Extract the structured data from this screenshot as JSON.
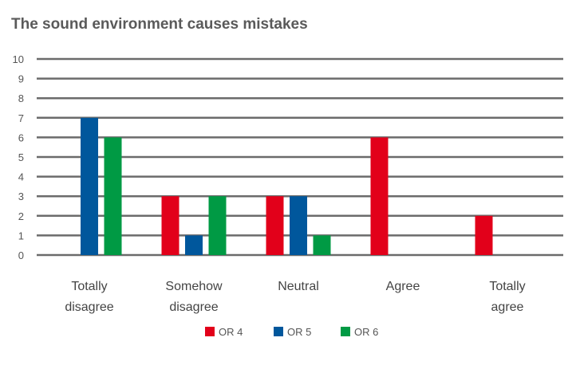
{
  "chart_data": {
    "type": "bar",
    "title": "The sound environment causes mistakes",
    "categories": [
      [
        "Totally",
        "disagree"
      ],
      [
        "Somehow",
        "disagree"
      ],
      [
        "Neutral"
      ],
      [
        "Agree"
      ],
      [
        "Totally",
        "agree"
      ]
    ],
    "series": [
      {
        "name": "OR 4",
        "color": "#e2001a",
        "values": [
          0,
          3,
          3,
          6,
          2
        ]
      },
      {
        "name": "OR 5",
        "color": "#00579c",
        "values": [
          7,
          1,
          3,
          0,
          0
        ]
      },
      {
        "name": "OR 6",
        "color": "#009a44",
        "values": [
          6,
          3,
          1,
          0,
          0
        ]
      }
    ],
    "y_ticks": [
      "0",
      "1",
      "2",
      "3",
      "4",
      "5",
      "6",
      "7",
      "8",
      "9",
      "10"
    ],
    "ylim": [
      0,
      10
    ],
    "grid": true,
    "legend_position": "bottom"
  }
}
